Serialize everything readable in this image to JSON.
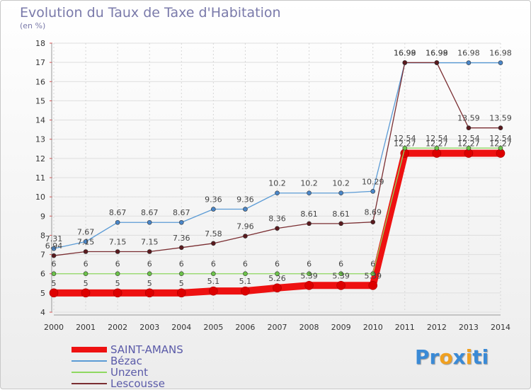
{
  "title": "Evolution du Taux de Taxe d'Habitation",
  "unit_label": "(en %)",
  "brand": {
    "text": "Proxiti",
    "letters": [
      {
        "ch": "P",
        "color": "#3a8ad6"
      },
      {
        "ch": "r",
        "color": "#3a8ad6"
      },
      {
        "ch": "o",
        "color": "#f0a020"
      },
      {
        "ch": "x",
        "color": "#3a8ad6"
      },
      {
        "ch": "i",
        "color": "#f0a020"
      },
      {
        "ch": "t",
        "color": "#3a8ad6"
      },
      {
        "ch": "i",
        "color": "#3a8ad6"
      }
    ]
  },
  "chart_data": {
    "type": "line",
    "title": "Evolution du Taux de Taxe d'Habitation",
    "ylabel": "(en %)",
    "xlabel": "",
    "x": [
      "2000",
      "2001",
      "2002",
      "2003",
      "2004",
      "2005",
      "2006",
      "2007",
      "2008",
      "2009",
      "2010",
      "2011",
      "2012",
      "2013",
      "2014"
    ],
    "ylim": [
      4,
      18
    ],
    "yticks": [
      4,
      5,
      6,
      7,
      8,
      9,
      10,
      11,
      12,
      13,
      14,
      15,
      16,
      17,
      18
    ],
    "grid": true,
    "legend": "bottom-left",
    "series": [
      {
        "name": "SAINT-AMANS",
        "color": "#ee1111",
        "marker_color": "#dd0000",
        "thick": true,
        "values": [
          5,
          5,
          5,
          5,
          5,
          5.1,
          5.1,
          5.26,
          5.39,
          5.39,
          5.39,
          12.27,
          12.27,
          12.27,
          12.27
        ],
        "labels": [
          "5",
          "5",
          "5",
          "5",
          "5",
          "5.1",
          "5.1",
          "5.26",
          "5.39",
          "5.39",
          "5.39",
          "12.27",
          "12.27",
          "12.27",
          "12.27"
        ]
      },
      {
        "name": "Bézac",
        "color": "#5b9bd5",
        "marker_color": "#4a86c8",
        "thick": false,
        "values": [
          7.31,
          7.67,
          8.67,
          8.67,
          8.67,
          9.36,
          9.36,
          10.2,
          10.2,
          10.2,
          10.29,
          16.98,
          16.98,
          16.98,
          16.98
        ],
        "labels": [
          "7.31",
          "7.67",
          "8.67",
          "8.67",
          "8.67",
          "9.36",
          "9.36",
          "10.2",
          "10.2",
          "10.2",
          "10.29",
          "16.98",
          "16.98",
          "16.98",
          "16.98"
        ]
      },
      {
        "name": "Unzent",
        "color": "#8fd860",
        "marker_color": "#6cc24a",
        "thick": false,
        "values": [
          6,
          6,
          6,
          6,
          6,
          6,
          6,
          6,
          6,
          6,
          6,
          12.54,
          12.54,
          12.54,
          12.54
        ],
        "labels": [
          "6",
          "6",
          "6",
          "6",
          "6",
          "6",
          "6",
          "6",
          "6",
          "6",
          "6",
          "12.54",
          "12.54",
          "12.54",
          "12.54"
        ]
      },
      {
        "name": "Lescousse",
        "color": "#7a2e32",
        "marker_color": "#5a1a1e",
        "thick": false,
        "values": [
          6.94,
          7.15,
          7.15,
          7.15,
          7.36,
          7.58,
          7.96,
          8.36,
          8.61,
          8.61,
          8.69,
          16.99,
          16.99,
          13.59,
          13.59
        ],
        "labels": [
          "6.94",
          "7.15",
          "7.15",
          "7.15",
          "7.36",
          "7.58",
          "7.96",
          "8.36",
          "8.61",
          "8.61",
          "8.69",
          "16.99",
          "16.99",
          "13.59",
          "13.59"
        ]
      }
    ]
  }
}
